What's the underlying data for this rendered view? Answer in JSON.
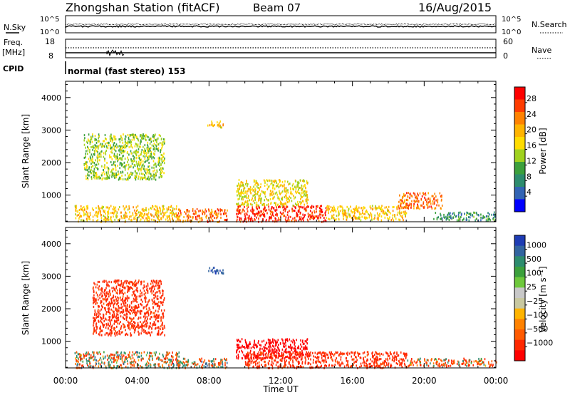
{
  "header": {
    "station": "Zhongshan Station (fitACF)",
    "beam": "Beam 07",
    "date": "16/Aug/2015"
  },
  "noise_panel": {
    "left_label": "N.Sky",
    "right_label": "N.Search",
    "left_ticks": [
      "10^5",
      "10^0"
    ],
    "right_ticks": [
      "10^5",
      "10^0"
    ]
  },
  "freq_panel": {
    "left_label_line1": "Freq.",
    "left_label_line2": "[MHz]",
    "right_label": "Nave",
    "left_ticks": [
      "18",
      "8"
    ],
    "right_ticks": [
      "60",
      "0"
    ]
  },
  "cpid": {
    "label": "CPID",
    "text": "normal (fast stereo) 153"
  },
  "colorbars": {
    "power": {
      "label": "Power [dB]",
      "ticks": [
        "28",
        "24",
        "20",
        "16",
        "12",
        "8",
        "4"
      ],
      "colors": [
        "#ff0000",
        "#ff3c00",
        "#ff8200",
        "#ffb400",
        "#ffdc00",
        "#a0d21e",
        "#3ca03c",
        "#2d8c6e",
        "#3264b4",
        "#0000ff"
      ]
    },
    "velocity": {
      "label": "Velocity [m s⁻¹]",
      "ticks": [
        "1000",
        "500",
        "100",
        "25",
        "−25",
        "−100",
        "−500",
        "−1000"
      ],
      "colors": [
        "#1e3cb4",
        "#3264a0",
        "#2d8c6e",
        "#3ca03c",
        "#6ec83c",
        "#c8c8c8",
        "#c8c8a0",
        "#ffb400",
        "#ff8200",
        "#ff5a00",
        "#ff2800",
        "#ff0000"
      ]
    }
  },
  "chart_data": [
    {
      "type": "heatmap",
      "title": "Power",
      "xlabel": "Time UT",
      "ylabel": "Slant Range [km]",
      "xlim": [
        "00:00",
        "24:00"
      ],
      "ylim": [
        180,
        4500
      ],
      "x_ticks": [
        "00:00",
        "04:00",
        "08:00",
        "12:00",
        "16:00",
        "20:00",
        "00:00"
      ],
      "y_ticks": [
        1000,
        2000,
        3000,
        4000
      ],
      "colorbar_label": "Power [dB]",
      "colorbar_ticks": [
        4,
        8,
        12,
        16,
        20,
        24,
        28
      ],
      "regions": [
        {
          "start_hour": 0.5,
          "end_hour": 6.3,
          "range_km": [
            200,
            700
          ],
          "power_db": 20
        },
        {
          "start_hour": 1.0,
          "end_hour": 5.5,
          "range_km": [
            1500,
            2900
          ],
          "power_db": 14
        },
        {
          "start_hour": 6.2,
          "end_hour": 9.0,
          "range_km": [
            200,
            600
          ],
          "power_db": 26
        },
        {
          "start_hour": 7.9,
          "end_hour": 8.8,
          "range_km": [
            3100,
            3300
          ],
          "power_db": 20
        },
        {
          "start_hour": 9.5,
          "end_hour": 14.5,
          "range_km": [
            200,
            700
          ],
          "power_db": 30
        },
        {
          "start_hour": 9.5,
          "end_hour": 13.5,
          "range_km": [
            700,
            1500
          ],
          "power_db": 18
        },
        {
          "start_hour": 14.5,
          "end_hour": 19.0,
          "range_km": [
            250,
            700
          ],
          "power_db": 20
        },
        {
          "start_hour": 18.5,
          "end_hour": 21.0,
          "range_km": [
            600,
            1100
          ],
          "power_db": 26
        },
        {
          "start_hour": 20.5,
          "end_hour": 24.0,
          "range_km": [
            250,
            500
          ],
          "power_db": 8
        }
      ]
    },
    {
      "type": "heatmap",
      "title": "Velocity",
      "xlabel": "Time UT",
      "ylabel": "Slant Range [km]",
      "xlim": [
        "00:00",
        "24:00"
      ],
      "ylim": [
        180,
        4500
      ],
      "x_ticks": [
        "00:00",
        "04:00",
        "08:00",
        "12:00",
        "16:00",
        "20:00",
        "00:00"
      ],
      "y_ticks": [
        1000,
        2000,
        3000,
        4000
      ],
      "colorbar_label": "Velocity [m s⁻¹]",
      "colorbar_ticks": [
        1000,
        500,
        100,
        25,
        -25,
        -100,
        -500,
        -1000
      ],
      "regions": [
        {
          "start_hour": 0.5,
          "end_hour": 6.3,
          "range_km": [
            200,
            700
          ],
          "velocity_ms": -25
        },
        {
          "start_hour": 1.5,
          "end_hour": 5.5,
          "range_km": [
            1200,
            2900
          ],
          "velocity_ms": -300
        },
        {
          "start_hour": 6.2,
          "end_hour": 9.0,
          "range_km": [
            200,
            500
          ],
          "velocity_ms": 0
        },
        {
          "start_hour": 7.9,
          "end_hour": 8.8,
          "range_km": [
            3100,
            3300
          ],
          "velocity_ms": 500
        },
        {
          "start_hour": 9.5,
          "end_hour": 13.5,
          "range_km": [
            500,
            1100
          ],
          "velocity_ms": -800
        },
        {
          "start_hour": 10.0,
          "end_hour": 19.0,
          "range_km": [
            200,
            700
          ],
          "velocity_ms": -300
        },
        {
          "start_hour": 19.0,
          "end_hour": 24.0,
          "range_km": [
            250,
            500
          ],
          "velocity_ms": -100
        }
      ]
    }
  ],
  "axes": {
    "x_ticks": [
      "00:00",
      "04:00",
      "08:00",
      "12:00",
      "16:00",
      "20:00",
      "00:00"
    ],
    "x_title": "Time UT",
    "y_ticks": [
      "4000",
      "3000",
      "2000",
      "1000"
    ],
    "y_title": "Slant Range [km]"
  }
}
